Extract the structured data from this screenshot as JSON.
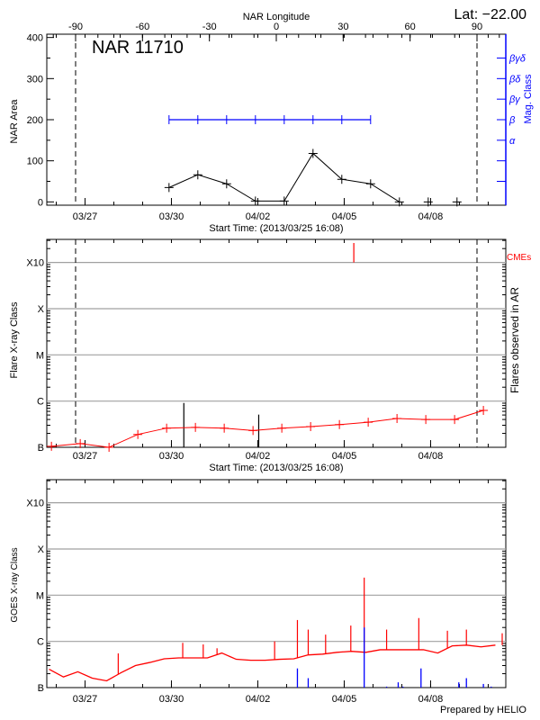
{
  "colors": {
    "axis": "#000000",
    "grid": "#a0a0a0",
    "area_series": "#000000",
    "mag_class": "#0000ff",
    "flare_series": "#ff0000",
    "cme": "#ff0000",
    "goes_series": "#ff0000",
    "goes_bars": "#0000ff"
  },
  "header": {
    "lat_label": "Lat: −22.00",
    "footer": "Prepared by HELIO"
  },
  "chart_data": [
    {
      "type": "line",
      "title": "NAR 11710",
      "xlabel": "Start Time: (2013/03/25 16:08)",
      "ylabel": "NAR Area",
      "top_axis_label": "NAR Longitude",
      "right_axis_label": "Mag. Class",
      "xlim": [
        "2013-03-25T16:08",
        "2013-04-10T14:40"
      ],
      "ylim": [
        -8,
        408
      ],
      "x_tick_labels": [
        "03/27",
        "03/30",
        "04/02",
        "04/05",
        "04/08"
      ],
      "y_tick_labels": [
        "0",
        "100",
        "200",
        "300",
        "400"
      ],
      "top_tick_labels": [
        "-90",
        "-60",
        "-30",
        "0",
        "30",
        "60",
        "90"
      ],
      "right_tick_labels": [
        "",
        "",
        "α",
        "β",
        "βγ",
        "βδ",
        "βγδ"
      ],
      "limb_dates": [
        "2013-03-26T16:08",
        "2013-04-09T14:40"
      ],
      "area_series": {
        "x": [
          "2013-03-29T22:00",
          "2013-03-30T22:00",
          "2013-03-31T22:00",
          "2013-04-01T22:00",
          "2013-04-02T22:00",
          "2013-04-03T22:00",
          "2013-04-04T22:00",
          "2013-04-05T22:00",
          "2013-04-06T22:00",
          "2013-04-07T22:00",
          "2013-04-08T22:00"
        ],
        "values": [
          35,
          66,
          44,
          2,
          2,
          118,
          55,
          44,
          0,
          0,
          0
        ]
      },
      "mag_class_series": {
        "x": [
          "2013-03-29T22:00",
          "2013-03-30T22:00",
          "2013-03-31T22:00",
          "2013-04-01T22:00",
          "2013-04-02T22:00",
          "2013-04-03T22:00",
          "2013-04-04T22:00",
          "2013-04-05T22:00"
        ],
        "values": [
          "β",
          "β",
          "β",
          "β",
          "β",
          "β",
          "β",
          "β"
        ]
      }
    },
    {
      "type": "line",
      "xlabel": "Start Time: (2013/03/25 16:08)",
      "ylabel": "Flare X-ray Class",
      "right_axis_label": "Flares observed in AR",
      "cme_label": "CMEs",
      "y_scale": "log",
      "xlim": [
        "2013-03-25T16:08",
        "2013-04-10T14:40"
      ],
      "ylim": [
        1e-07,
        0.00316
      ],
      "grid": true,
      "x_tick_labels": [
        "03/27",
        "03/30",
        "04/02",
        "04/05",
        "04/08"
      ],
      "y_tick_labels": [
        "B",
        "C",
        "M",
        "X",
        "X10"
      ],
      "limb_dates": [
        "2013-03-26T16:08",
        "2013-04-09T14:40"
      ],
      "series": {
        "x": [
          "2013-03-25T20:00",
          "2013-03-26T20:00",
          "2013-03-27T20:00",
          "2013-03-28T20:00",
          "2013-03-29T20:00",
          "2013-03-30T20:00",
          "2013-03-31T20:00",
          "2013-04-01T20:00",
          "2013-04-02T20:00",
          "2013-04-03T20:00",
          "2013-04-04T20:00",
          "2013-04-05T20:00",
          "2013-04-06T20:00",
          "2013-04-07T20:00",
          "2013-04-08T20:00",
          "2013-04-09T20:00"
        ],
        "values": [
          1.05e-07,
          1.2e-07,
          1e-07,
          1.9e-07,
          2.6e-07,
          2.7e-07,
          2.6e-07,
          2.3e-07,
          2.6e-07,
          2.8e-07,
          3.1e-07,
          3.5e-07,
          4.2e-07,
          4e-07,
          4e-07,
          6.3e-07
        ]
      },
      "flares": [
        {
          "x": "2013-03-30T10:20",
          "value": 9.1e-07
        },
        {
          "x": "2013-04-02T00:45",
          "value": 5.1e-07
        }
      ],
      "cmes": [
        {
          "x": "2013-04-05T08:00"
        }
      ]
    },
    {
      "type": "line",
      "ylabel": "GOES X-ray Class",
      "y_scale": "log",
      "xlim": [
        "2013-03-25T16:08",
        "2013-04-10T14:40"
      ],
      "ylim": [
        1e-07,
        0.00316
      ],
      "grid": true,
      "x_tick_labels": [
        "03/27",
        "03/30",
        "04/02",
        "04/05",
        "04/08"
      ],
      "y_tick_labels": [
        "B",
        "C",
        "M",
        "X",
        "X10"
      ],
      "baseline": {
        "x": [
          "2013-03-25T18:00",
          "2013-03-26T06:00",
          "2013-03-26T18:00",
          "2013-03-27T06:00",
          "2013-03-27T18:00",
          "2013-03-28T06:00",
          "2013-03-28T18:00",
          "2013-03-29T06:00",
          "2013-03-29T18:00",
          "2013-03-30T06:00",
          "2013-03-30T18:00",
          "2013-03-31T06:00",
          "2013-03-31T18:00",
          "2013-04-01T06:00",
          "2013-04-01T18:00",
          "2013-04-02T06:00",
          "2013-04-02T18:00",
          "2013-04-03T06:00",
          "2013-04-03T18:00",
          "2013-04-04T06:00",
          "2013-04-04T18:00",
          "2013-04-05T06:00",
          "2013-04-05T18:00",
          "2013-04-06T06:00",
          "2013-04-06T18:00",
          "2013-04-07T06:00",
          "2013-04-07T18:00",
          "2013-04-08T06:00",
          "2013-04-08T18:00",
          "2013-04-09T06:00",
          "2013-04-09T18:00",
          "2013-04-10T06:00"
        ],
        "values": [
          2.5e-07,
          1.7e-07,
          2.2e-07,
          1.6e-07,
          1.4e-07,
          2.1e-07,
          3e-07,
          3.5e-07,
          4.2e-07,
          4.4e-07,
          4.4e-07,
          4.4e-07,
          5.6e-07,
          4.1e-07,
          3.9e-07,
          3.9e-07,
          4.1e-07,
          4.2e-07,
          5.1e-07,
          5.3e-07,
          5.8e-07,
          6.1e-07,
          5.8e-07,
          6.6e-07,
          6.6e-07,
          6.6e-07,
          6.6e-07,
          5.6e-07,
          8e-07,
          8.3e-07,
          7.6e-07,
          8.3e-07
        ]
      },
      "peaks": [
        {
          "x": "2013-03-28T03:40",
          "value": 5.5e-07
        },
        {
          "x": "2013-03-30T09:25",
          "value": 9.3e-07
        },
        {
          "x": "2013-03-31T02:30",
          "value": 8.6e-07
        },
        {
          "x": "2013-03-31T14:00",
          "value": 7.1e-07
        },
        {
          "x": "2013-04-02T14:00",
          "value": 1e-06
        },
        {
          "x": "2013-04-03T09:00",
          "value": 2.9e-06
        },
        {
          "x": "2013-04-03T18:00",
          "value": 1.8e-06
        },
        {
          "x": "2013-04-04T08:30",
          "value": 1.4e-06
        },
        {
          "x": "2013-04-05T05:30",
          "value": 2.2e-06
        },
        {
          "x": "2013-04-05T16:40",
          "value": 2.4e-05
        },
        {
          "x": "2013-04-06T11:20",
          "value": 1.8e-06
        },
        {
          "x": "2013-04-07T14:10",
          "value": 3.2e-06
        },
        {
          "x": "2013-04-08T14:00",
          "value": 1.7e-06
        },
        {
          "x": "2013-04-09T05:50",
          "value": 1.8e-06
        },
        {
          "x": "2013-04-10T11:40",
          "value": 1.5e-06
        }
      ],
      "bars": [
        {
          "x": "2013-04-03T09:00",
          "value": 2.6e-07
        },
        {
          "x": "2013-04-03T18:00",
          "value": 1.6e-07
        },
        {
          "x": "2013-04-05T16:40",
          "value": 2e-06
        },
        {
          "x": "2013-04-06T11:20",
          "value": 1.05e-07
        },
        {
          "x": "2013-04-06T21:00",
          "value": 1.3e-07
        },
        {
          "x": "2013-04-07T01:00",
          "value": 1.05e-07
        },
        {
          "x": "2013-04-07T16:00",
          "value": 2.6e-07
        },
        {
          "x": "2013-04-08T23:30",
          "value": 1.3e-07
        },
        {
          "x": "2013-04-09T05:50",
          "value": 1.6e-07
        },
        {
          "x": "2013-04-09T20:00",
          "value": 1.2e-07
        },
        {
          "x": "2013-04-10T02:30",
          "value": 1.05e-07
        }
      ]
    }
  ]
}
